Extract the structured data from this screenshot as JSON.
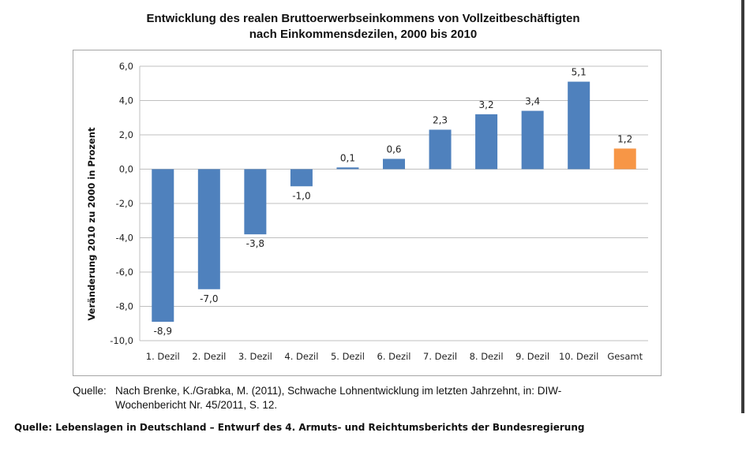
{
  "chart_data": {
    "type": "bar",
    "title_line1": "Entwicklung des realen Bruttoerwerbseinkommens von Vollzeitbeschäftigten",
    "title_line2": "nach Einkommensdezilen, 2000 bis 2010",
    "ylabel": "Veränderung 2010 zu 2000 in Prozent",
    "xlabel": "",
    "ylim": [
      -10,
      6
    ],
    "yticks": [
      6,
      4,
      2,
      0,
      -2,
      -4,
      -6,
      -8,
      -10
    ],
    "ytick_labels": [
      "6,0",
      "4,0",
      "2,0",
      "0,0",
      "-2,0",
      "-4,0",
      "-6,0",
      "-8,0",
      "-10,0"
    ],
    "grid": true,
    "categories": [
      "1. Dezil",
      "2. Dezil",
      "3. Dezil",
      "4. Dezil",
      "5. Dezil",
      "6. Dezil",
      "7. Dezil",
      "8. Dezil",
      "9. Dezil",
      "10. Dezil",
      "Gesamt"
    ],
    "values": [
      -8.9,
      -7.0,
      -3.8,
      -1.0,
      0.1,
      0.6,
      2.3,
      3.2,
      3.4,
      5.1,
      1.2
    ],
    "value_labels": [
      "-8,9",
      "-7,0",
      "-3,8",
      "-1,0",
      "0,1",
      "0,6",
      "2,3",
      "3,2",
      "3,4",
      "5,1",
      "1,2"
    ],
    "colors": {
      "bar": "#4f81bd",
      "highlight": "#f79646",
      "grid": "#bfbfbf"
    },
    "highlight_index": 10
  },
  "caption": {
    "label": "Quelle:",
    "line1": "Nach Brenke, K./Grabka, M. (2011), Schwache Lohnentwicklung im letzten Jahrzehnt, in: DIW-",
    "line2": "Wochenbericht Nr. 45/2011, S. 12."
  },
  "footer": "Quelle: Lebenslagen in Deutschland – Entwurf des 4. Armuts- und Reichtumsberichts der Bundesregierung"
}
